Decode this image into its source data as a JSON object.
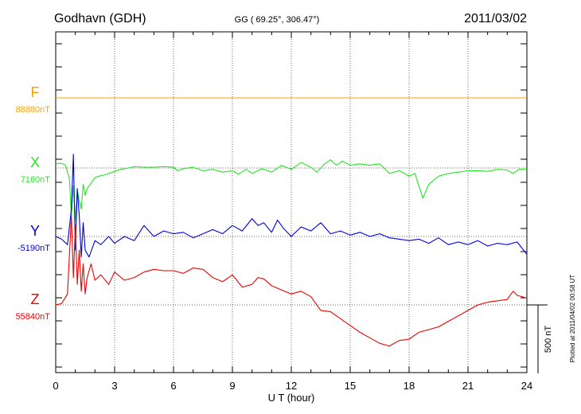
{
  "header": {
    "station": "Godhavn (GDH)",
    "coords": "GG ( 69.25°, 306.47°)",
    "date": "2011/03/02"
  },
  "footer": {
    "plotted": "Plotted at 2011/04/02 00:58 UT"
  },
  "colors": {
    "F": "#f5a300",
    "X": "#22e822",
    "Y": "#0000dd",
    "Z": "#ee0000"
  },
  "chart_data": {
    "type": "line",
    "title": "Godhavn (GDH)",
    "subtitle": "GG ( 69.25°, 306.47°)",
    "date": "2011/03/02",
    "xlabel": "U T (hour)",
    "xlim": [
      0,
      24
    ],
    "x_ticks": [
      "0",
      "3",
      "6",
      "9",
      "12",
      "15",
      "18",
      "21",
      "24"
    ],
    "grid": true,
    "scale_bar": "500 nT",
    "scale_nt": 500,
    "series": [
      {
        "name": "F",
        "baseline": "88880nT",
        "x": [
          0,
          24
        ],
        "y": [
          0,
          0
        ]
      },
      {
        "name": "X",
        "baseline": "7160nT",
        "x": [
          0,
          0.3,
          0.5,
          0.7,
          0.8,
          0.9,
          1.0,
          1.1,
          1.2,
          1.3,
          1.4,
          1.5,
          1.6,
          1.8,
          2.0,
          2.2,
          2.5,
          3.0,
          3.3,
          3.7,
          4.0,
          4.5,
          5.0,
          5.5,
          6.0,
          6.2,
          6.5,
          7.0,
          7.5,
          8.0,
          8.5,
          9.0,
          9.3,
          9.7,
          10.0,
          10.5,
          11.0,
          11.5,
          12.0,
          12.5,
          13.0,
          13.3,
          13.7,
          14.0,
          14.3,
          14.6,
          15.0,
          15.5,
          16.0,
          16.5,
          17.0,
          17.5,
          18.0,
          18.3,
          18.7,
          19.0,
          19.5,
          20.0,
          20.5,
          21.0,
          21.5,
          22.0,
          22.5,
          23.0,
          23.3,
          23.6,
          24.0
        ],
        "y": [
          30,
          35,
          20,
          -80,
          -350,
          -130,
          -380,
          -160,
          -240,
          -300,
          -120,
          -200,
          -150,
          -110,
          -70,
          -60,
          -50,
          -25,
          -10,
          0,
          10,
          5,
          5,
          10,
          5,
          -20,
          -5,
          5,
          -20,
          -10,
          -30,
          -20,
          -45,
          -10,
          -40,
          -5,
          -30,
          20,
          -10,
          40,
          5,
          -30,
          30,
          60,
          20,
          50,
          20,
          30,
          20,
          30,
          -40,
          -20,
          -60,
          -40,
          -220,
          -120,
          -60,
          -40,
          -30,
          -20,
          -20,
          -25,
          -10,
          -15,
          -40,
          -10,
          -10
        ]
      },
      {
        "name": "Y",
        "baseline": "-5190nT",
        "x": [
          0,
          0.3,
          0.6,
          0.8,
          0.9,
          1.0,
          1.1,
          1.2,
          1.3,
          1.4,
          1.5,
          1.7,
          2.0,
          2.3,
          2.7,
          3.0,
          3.5,
          4.0,
          4.5,
          5.0,
          5.5,
          6.0,
          6.5,
          7.0,
          7.5,
          8.0,
          8.5,
          9.0,
          9.5,
          10.0,
          10.3,
          10.6,
          11.0,
          11.3,
          11.6,
          12.0,
          12.5,
          13.0,
          13.5,
          14.0,
          14.5,
          15.0,
          15.5,
          16.0,
          16.5,
          17.0,
          17.5,
          18.0,
          18.5,
          19.0,
          19.5,
          20.0,
          20.5,
          21.0,
          21.5,
          22.0,
          22.5,
          23.0,
          23.5,
          24.0
        ],
        "y": [
          0,
          -20,
          -60,
          200,
          600,
          -100,
          350,
          150,
          -150,
          100,
          -100,
          -150,
          -30,
          -60,
          0,
          -50,
          0,
          -30,
          80,
          0,
          40,
          20,
          30,
          -10,
          20,
          50,
          20,
          80,
          40,
          130,
          80,
          100,
          30,
          120,
          60,
          0,
          70,
          40,
          100,
          20,
          40,
          10,
          30,
          0,
          20,
          -10,
          -20,
          -30,
          -20,
          -50,
          -10,
          -60,
          -40,
          -60,
          -30,
          -70,
          -50,
          -60,
          -40,
          -130
        ]
      },
      {
        "name": "Z",
        "baseline": "55840nT",
        "x": [
          0,
          0.3,
          0.6,
          0.8,
          0.9,
          1.0,
          1.1,
          1.2,
          1.3,
          1.4,
          1.5,
          1.6,
          1.8,
          2.0,
          2.3,
          2.7,
          3.0,
          3.5,
          4.0,
          4.5,
          5.0,
          5.5,
          6.0,
          6.5,
          7.0,
          7.5,
          8.0,
          8.5,
          9.0,
          9.5,
          10.0,
          10.3,
          10.6,
          11.0,
          11.5,
          12.0,
          12.5,
          13.0,
          13.5,
          14.0,
          14.5,
          15.0,
          15.5,
          16.0,
          16.5,
          17.0,
          17.5,
          18.0,
          18.5,
          19.0,
          19.5,
          20.0,
          20.5,
          21.0,
          21.5,
          22.0,
          22.5,
          23.0,
          23.3,
          23.5,
          24.0
        ],
        "y": [
          0,
          10,
          80,
          650,
          200,
          580,
          150,
          400,
          100,
          300,
          80,
          200,
          300,
          180,
          220,
          150,
          240,
          180,
          200,
          240,
          260,
          250,
          250,
          230,
          270,
          260,
          200,
          170,
          220,
          130,
          150,
          200,
          190,
          140,
          110,
          80,
          100,
          60,
          -40,
          -50,
          -100,
          -150,
          -200,
          -240,
          -280,
          -300,
          -260,
          -250,
          -200,
          -180,
          -160,
          -120,
          -80,
          -40,
          0,
          20,
          30,
          40,
          100,
          70,
          50
        ]
      }
    ]
  }
}
